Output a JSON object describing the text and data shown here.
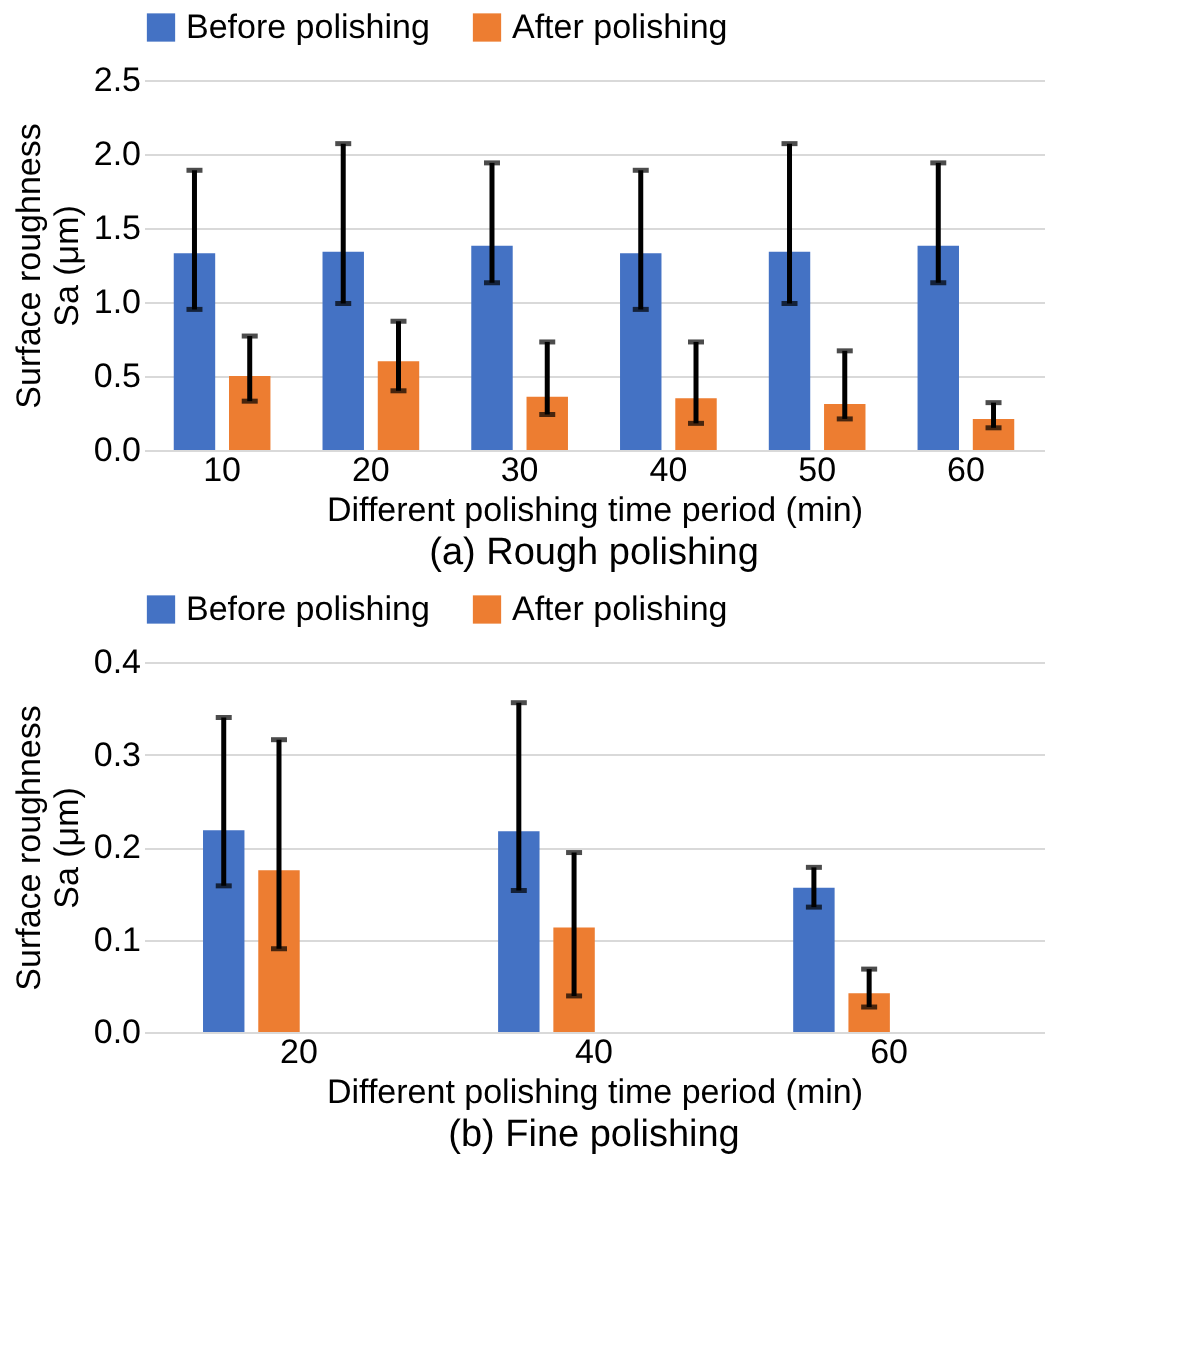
{
  "chart_data": [
    {
      "type": "bar",
      "title": "(a) Rough polishing",
      "xlabel": "Different polishing time period (min)",
      "ylabel": "Surface roughness Sa (μm)",
      "categories": [
        "10",
        "20",
        "30",
        "40",
        "50",
        "60"
      ],
      "series": [
        {
          "name": "Before polishing",
          "color": "#4472c4",
          "values": [
            1.33,
            1.34,
            1.38,
            1.33,
            1.34,
            1.38
          ],
          "errors": [
            [
              0.95,
              1.89
            ],
            [
              0.99,
              2.07
            ],
            [
              1.13,
              1.94
            ],
            [
              0.95,
              1.89
            ],
            [
              0.99,
              2.07
            ],
            [
              1.13,
              1.94
            ]
          ]
        },
        {
          "name": "After polishing",
          "color": "#ed7d31",
          "values": [
            0.5,
            0.6,
            0.36,
            0.35,
            0.31,
            0.21
          ],
          "errors": [
            [
              0.33,
              0.77
            ],
            [
              0.4,
              0.87
            ],
            [
              0.24,
              0.73
            ],
            [
              0.18,
              0.73
            ],
            [
              0.21,
              0.67
            ],
            [
              0.15,
              0.32
            ]
          ]
        }
      ],
      "ylim": [
        0,
        2.5
      ],
      "yticks": [
        {
          "value": 0,
          "label": "0.0"
        },
        {
          "value": 0.5,
          "label": "0.5"
        },
        {
          "value": 1,
          "label": "1.0"
        },
        {
          "value": 1.5,
          "label": "1.5"
        },
        {
          "value": 2,
          "label": "2.0"
        },
        {
          "value": 2.5,
          "label": "2.5"
        }
      ],
      "grid": "y",
      "legend": "top"
    },
    {
      "type": "bar",
      "title": "(b) Fine polishing",
      "xlabel": "Different polishing time period (min)",
      "ylabel": "Surface roughness Sa (μm)",
      "categories": [
        "20",
        "40",
        "60"
      ],
      "series": [
        {
          "name": "Before polishing",
          "color": "#4472c4",
          "values": [
            0.218,
            0.217,
            0.156
          ],
          "errors": [
            [
              0.158,
              0.34
            ],
            [
              0.153,
              0.356
            ],
            [
              0.135,
              0.178
            ]
          ]
        },
        {
          "name": "After polishing",
          "color": "#ed7d31",
          "values": [
            0.175,
            0.113,
            0.042
          ],
          "errors": [
            [
              0.09,
              0.316
            ],
            [
              0.039,
              0.194
            ],
            [
              0.027,
              0.068
            ]
          ]
        }
      ],
      "ylim": [
        0,
        0.4
      ],
      "yticks": [
        {
          "value": 0,
          "label": "0.0"
        },
        {
          "value": 0.1,
          "label": "0.1"
        },
        {
          "value": 0.2,
          "label": "0.2"
        },
        {
          "value": 0.3,
          "label": "0.3"
        },
        {
          "value": 0.4,
          "label": "0.4"
        }
      ],
      "grid": "y",
      "legend": "top"
    }
  ]
}
